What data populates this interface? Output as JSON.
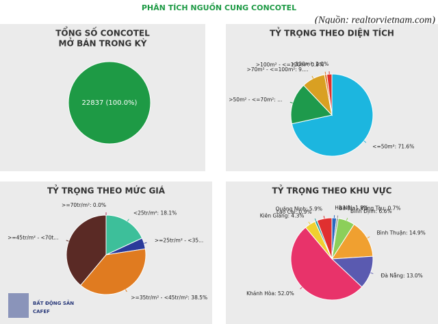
{
  "title": "PHÂN TÍCH NGUỒN CUNG CONCOTEL",
  "source": "(Nguồn: realtorvietnam.com)",
  "logo": [
    "BẤT ĐỘNG SẢN",
    "CAFEF"
  ],
  "chart_data": [
    {
      "type": "pie",
      "title": [
        "TỔNG SỐ CONCOTEL",
        "MỞ BÁN TRONG KỲ"
      ],
      "values": [
        22837
      ],
      "value_labels": [
        "22837 (100.0%)"
      ],
      "colors": [
        "#1e9a45"
      ]
    },
    {
      "type": "pie",
      "title": [
        "TỶ TRỌNG THEO DIỆN TÍCH"
      ],
      "values": [
        71.6,
        16.3,
        9.2,
        0.9,
        2.0
      ],
      "value_labels": [
        "<=50m²: 71.6%",
        ">50m² - <=70m²: ...",
        ">70m² - <=100m²: 9....",
        ">100m² - <=120m²: 0.9%",
        ">120m²: 2.0%"
      ],
      "colors": [
        "#1cb6df",
        "#1e9a4c",
        "#d9a022",
        "#e0782a",
        "#e0302a"
      ]
    },
    {
      "type": "pie",
      "title": [
        "TỶ TRỌNG THEO MỨC GIÁ"
      ],
      "values": [
        18.1,
        4.5,
        38.5,
        38.9,
        0.0
      ],
      "value_labels": [
        "<25tr/m²: 18.1%",
        ">=25tr/m² - <35...",
        ">=35tr/m² - <45tr/m²: 38.5%",
        ">=45tr/m² - <70t...",
        ">=70tr/m²: 0.0%"
      ],
      "colors": [
        "#3dbf9a",
        "#2a3a9a",
        "#e07b20",
        "#5a2a25",
        "#b03060"
      ]
    },
    {
      "type": "pie",
      "title": [
        "TỶ TRỌNG THEO KHU VỰC"
      ],
      "values": [
        1.8,
        0.7,
        6.6,
        14.9,
        13.0,
        52.0,
        4.3,
        0.9,
        5.9
      ],
      "value_labels": [
        "Hà Nội: 1.8%",
        "Bà Rịa - Vũng Tàu: 0.7%",
        "Bình Định: 6.6%",
        "Bình Thuận: 14.9%",
        "Đà Nẵng: 13.0%",
        "Khánh Hòa: 52.0%",
        "Kiên Giang: 4.3%",
        "Lào Cai: 0.9%",
        "Quảng Ninh: 5.9%"
      ],
      "colors": [
        "#2a6ac0",
        "#8a8a8a",
        "#8ccf5a",
        "#f0a030",
        "#5a5ab0",
        "#e8336a",
        "#f0d030",
        "#2aa0a0",
        "#e03030"
      ]
    }
  ]
}
